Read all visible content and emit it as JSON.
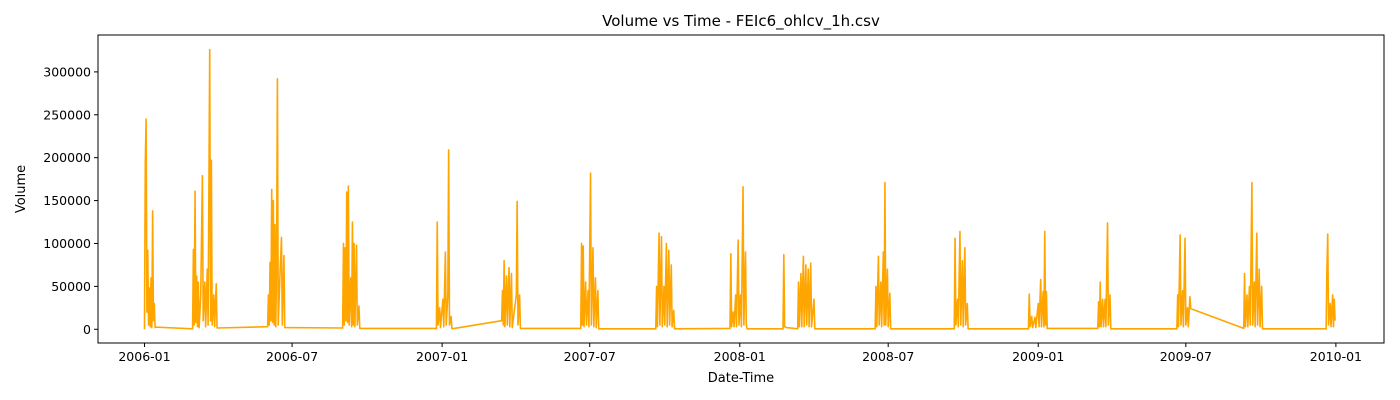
{
  "chart_data": {
    "type": "line",
    "title": "Volume vs Time - FEIc6_ohlcv_1h.csv",
    "xlabel": "Date-Time",
    "ylabel": "Volume",
    "line_color": "#FFA500",
    "grid": false,
    "legend": "none",
    "x_ticks": [
      "2006-01",
      "2006-07",
      "2007-01",
      "2007-07",
      "2008-01",
      "2008-07",
      "2009-01",
      "2009-07",
      "2010-01"
    ],
    "y_ticks": [
      "0",
      "50000",
      "100000",
      "150000",
      "200000",
      "250000",
      "300000"
    ],
    "xlim": [
      "2005-11-05",
      "2010-03-01"
    ],
    "ylim": [
      -16000,
      343000
    ],
    "series": [
      {
        "values": [
          [
            "2006-01-01",
            0
          ],
          [
            "2006-01-02",
            195000
          ],
          [
            "2006-01-03",
            245000
          ],
          [
            "2006-01-04",
            20000
          ],
          [
            "2006-01-05",
            92000
          ],
          [
            "2006-01-06",
            5000
          ],
          [
            "2006-01-07",
            48000
          ],
          [
            "2006-01-08",
            3000
          ],
          [
            "2006-01-09",
            60000
          ],
          [
            "2006-01-10",
            2000
          ],
          [
            "2006-01-11",
            138000
          ],
          [
            "2006-01-12",
            10000
          ],
          [
            "2006-01-13",
            30000
          ],
          [
            "2006-01-14",
            2000
          ],
          [
            "2006-01-15",
            2500
          ],
          [
            "2006-03-01",
            500
          ],
          [
            "2006-03-02",
            93000
          ],
          [
            "2006-03-03",
            5000
          ],
          [
            "2006-03-04",
            161000
          ],
          [
            "2006-03-05",
            8000
          ],
          [
            "2006-03-06",
            62000
          ],
          [
            "2006-03-07",
            3000
          ],
          [
            "2006-03-08",
            55000
          ],
          [
            "2006-03-09",
            2000
          ],
          [
            "2006-03-11",
            40000
          ],
          [
            "2006-03-13",
            179000
          ],
          [
            "2006-03-14",
            10000
          ],
          [
            "2006-03-16",
            55000
          ],
          [
            "2006-03-17",
            3000
          ],
          [
            "2006-03-19",
            70000
          ],
          [
            "2006-03-20",
            5000
          ],
          [
            "2006-03-22",
            326000
          ],
          [
            "2006-03-23",
            10000
          ],
          [
            "2006-03-24",
            197000
          ],
          [
            "2006-03-25",
            5000
          ],
          [
            "2006-03-27",
            40000
          ],
          [
            "2006-03-28",
            3000
          ],
          [
            "2006-03-30",
            53000
          ],
          [
            "2006-03-31",
            1500
          ],
          [
            "2006-06-01",
            3000
          ],
          [
            "2006-06-02",
            40000
          ],
          [
            "2006-06-03",
            5000
          ],
          [
            "2006-06-04",
            78000
          ],
          [
            "2006-06-05",
            10000
          ],
          [
            "2006-06-06",
            163000
          ],
          [
            "2006-06-07",
            8000
          ],
          [
            "2006-06-08",
            150000
          ],
          [
            "2006-06-09",
            5000
          ],
          [
            "2006-06-10",
            122000
          ],
          [
            "2006-06-11",
            3000
          ],
          [
            "2006-06-12",
            75000
          ],
          [
            "2006-06-13",
            292000
          ],
          [
            "2006-06-14",
            5000
          ],
          [
            "2006-06-16",
            60000
          ],
          [
            "2006-06-18",
            107000
          ],
          [
            "2006-06-19",
            5000
          ],
          [
            "2006-06-21",
            86000
          ],
          [
            "2006-06-22",
            2000
          ],
          [
            "2006-09-01",
            1500
          ],
          [
            "2006-09-02",
            100000
          ],
          [
            "2006-09-03",
            5000
          ],
          [
            "2006-09-04",
            95000
          ],
          [
            "2006-09-05",
            10000
          ],
          [
            "2006-09-06",
            160000
          ],
          [
            "2006-09-07",
            8000
          ],
          [
            "2006-09-08",
            167000
          ],
          [
            "2006-09-09",
            5000
          ],
          [
            "2006-09-11",
            60000
          ],
          [
            "2006-09-12",
            3000
          ],
          [
            "2006-09-13",
            125000
          ],
          [
            "2006-09-14",
            5000
          ],
          [
            "2006-09-15",
            100000
          ],
          [
            "2006-09-16",
            3000
          ],
          [
            "2006-09-18",
            98000
          ],
          [
            "2006-09-19",
            5000
          ],
          [
            "2006-09-21",
            27000
          ],
          [
            "2006-09-22",
            1000
          ],
          [
            "2006-12-25",
            1000
          ],
          [
            "2006-12-26",
            125000
          ],
          [
            "2006-12-27",
            5000
          ],
          [
            "2006-12-29",
            25000
          ],
          [
            "2006-12-30",
            2000
          ],
          [
            "2007-01-02",
            35000
          ],
          [
            "2007-01-03",
            3000
          ],
          [
            "2007-01-05",
            90000
          ],
          [
            "2007-01-06",
            5000
          ],
          [
            "2007-01-08",
            40000
          ],
          [
            "2007-01-09",
            209000
          ],
          [
            "2007-01-10",
            5000
          ],
          [
            "2007-01-12",
            15000
          ],
          [
            "2007-01-13",
            500
          ],
          [
            "2007-03-15",
            10000
          ],
          [
            "2007-03-16",
            45000
          ],
          [
            "2007-03-17",
            5000
          ],
          [
            "2007-03-18",
            80000
          ],
          [
            "2007-03-19",
            3000
          ],
          [
            "2007-03-21",
            62000
          ],
          [
            "2007-03-22",
            5000
          ],
          [
            "2007-03-24",
            72000
          ],
          [
            "2007-03-25",
            3000
          ],
          [
            "2007-03-27",
            65000
          ],
          [
            "2007-03-28",
            2000
          ],
          [
            "2007-04-02",
            40000
          ],
          [
            "2007-04-03",
            149000
          ],
          [
            "2007-04-04",
            5000
          ],
          [
            "2007-04-06",
            40000
          ],
          [
            "2007-04-07",
            1000
          ],
          [
            "2007-06-20",
            1000
          ],
          [
            "2007-06-21",
            100000
          ],
          [
            "2007-06-22",
            5000
          ],
          [
            "2007-06-23",
            97000
          ],
          [
            "2007-06-24",
            3000
          ],
          [
            "2007-06-26",
            55000
          ],
          [
            "2007-06-27",
            5000
          ],
          [
            "2007-06-29",
            45000
          ],
          [
            "2007-06-30",
            3000
          ],
          [
            "2007-07-02",
            182000
          ],
          [
            "2007-07-03",
            5000
          ],
          [
            "2007-07-05",
            95000
          ],
          [
            "2007-07-06",
            3000
          ],
          [
            "2007-07-08",
            60000
          ],
          [
            "2007-07-09",
            2000
          ],
          [
            "2007-07-11",
            45000
          ],
          [
            "2007-07-12",
            500
          ],
          [
            "2007-09-20",
            500
          ],
          [
            "2007-09-21",
            50000
          ],
          [
            "2007-09-22",
            3000
          ],
          [
            "2007-09-24",
            112000
          ],
          [
            "2007-09-25",
            5000
          ],
          [
            "2007-09-27",
            108000
          ],
          [
            "2007-09-28",
            3000
          ],
          [
            "2007-09-30",
            50000
          ],
          [
            "2007-10-01",
            5000
          ],
          [
            "2007-10-03",
            100000
          ],
          [
            "2007-10-04",
            3000
          ],
          [
            "2007-10-06",
            92000
          ],
          [
            "2007-10-07",
            5000
          ],
          [
            "2007-10-09",
            75000
          ],
          [
            "2007-10-10",
            3000
          ],
          [
            "2007-10-12",
            22000
          ],
          [
            "2007-10-13",
            500
          ],
          [
            "2007-12-20",
            1000
          ],
          [
            "2007-12-21",
            88000
          ],
          [
            "2007-12-22",
            3000
          ],
          [
            "2007-12-24",
            20000
          ],
          [
            "2007-12-25",
            3000
          ],
          [
            "2007-12-27",
            40000
          ],
          [
            "2007-12-28",
            3000
          ],
          [
            "2007-12-30",
            104000
          ],
          [
            "2007-12-31",
            5000
          ],
          [
            "2008-01-02",
            40000
          ],
          [
            "2008-01-03",
            3000
          ],
          [
            "2008-01-05",
            166000
          ],
          [
            "2008-01-06",
            5000
          ],
          [
            "2008-01-08",
            90000
          ],
          [
            "2008-01-09",
            5000
          ],
          [
            "2008-01-10",
            500
          ],
          [
            "2008-02-23",
            500
          ],
          [
            "2008-02-24",
            87000
          ],
          [
            "2008-02-25",
            3000
          ],
          [
            "2008-02-27",
            2000
          ],
          [
            "2008-03-12",
            500
          ],
          [
            "2008-03-13",
            55000
          ],
          [
            "2008-03-14",
            3000
          ],
          [
            "2008-03-16",
            65000
          ],
          [
            "2008-03-17",
            3000
          ],
          [
            "2008-03-19",
            85000
          ],
          [
            "2008-03-20",
            3000
          ],
          [
            "2008-03-22",
            75000
          ],
          [
            "2008-03-23",
            5000
          ],
          [
            "2008-03-25",
            70000
          ],
          [
            "2008-03-26",
            3000
          ],
          [
            "2008-03-28",
            77000
          ],
          [
            "2008-03-29",
            3000
          ],
          [
            "2008-04-01",
            35000
          ],
          [
            "2008-04-02",
            500
          ],
          [
            "2008-06-15",
            500
          ],
          [
            "2008-06-16",
            50000
          ],
          [
            "2008-06-17",
            3000
          ],
          [
            "2008-06-19",
            85000
          ],
          [
            "2008-06-20",
            5000
          ],
          [
            "2008-06-22",
            55000
          ],
          [
            "2008-06-23",
            3000
          ],
          [
            "2008-06-25",
            90000
          ],
          [
            "2008-06-26",
            5000
          ],
          [
            "2008-06-27",
            171000
          ],
          [
            "2008-06-28",
            5000
          ],
          [
            "2008-06-30",
            70000
          ],
          [
            "2008-07-01",
            3000
          ],
          [
            "2008-07-03",
            42000
          ],
          [
            "2008-07-04",
            500
          ],
          [
            "2008-09-20",
            500
          ],
          [
            "2008-09-21",
            106000
          ],
          [
            "2008-09-22",
            5000
          ],
          [
            "2008-09-24",
            35000
          ],
          [
            "2008-09-25",
            3000
          ],
          [
            "2008-09-27",
            114000
          ],
          [
            "2008-09-28",
            5000
          ],
          [
            "2008-09-30",
            80000
          ],
          [
            "2008-10-01",
            3000
          ],
          [
            "2008-10-03",
            95000
          ],
          [
            "2008-10-04",
            5000
          ],
          [
            "2008-10-06",
            30000
          ],
          [
            "2008-10-07",
            500
          ],
          [
            "2008-12-20",
            500
          ],
          [
            "2008-12-21",
            41000
          ],
          [
            "2008-12-22",
            3000
          ],
          [
            "2008-12-24",
            15000
          ],
          [
            "2008-12-25",
            2000
          ],
          [
            "2008-12-28",
            14000
          ],
          [
            "2008-12-29",
            2000
          ],
          [
            "2009-01-01",
            30000
          ],
          [
            "2009-01-02",
            3000
          ],
          [
            "2009-01-04",
            58000
          ],
          [
            "2009-01-05",
            3000
          ],
          [
            "2009-01-07",
            44000
          ],
          [
            "2009-01-08",
            3000
          ],
          [
            "2009-01-09",
            114000
          ],
          [
            "2009-01-10",
            5000
          ],
          [
            "2009-01-11",
            44000
          ],
          [
            "2009-01-12",
            1000
          ],
          [
            "2009-03-15",
            1000
          ],
          [
            "2009-03-16",
            32000
          ],
          [
            "2009-03-17",
            3000
          ],
          [
            "2009-03-18",
            55000
          ],
          [
            "2009-03-19",
            3000
          ],
          [
            "2009-03-21",
            35000
          ],
          [
            "2009-03-22",
            3000
          ],
          [
            "2009-03-24",
            35000
          ],
          [
            "2009-03-25",
            3000
          ],
          [
            "2009-03-27",
            124000
          ],
          [
            "2009-03-28",
            5000
          ],
          [
            "2009-03-30",
            40000
          ],
          [
            "2009-03-31",
            500
          ],
          [
            "2009-06-20",
            500
          ],
          [
            "2009-06-21",
            40000
          ],
          [
            "2009-06-22",
            3000
          ],
          [
            "2009-06-24",
            110000
          ],
          [
            "2009-06-25",
            5000
          ],
          [
            "2009-06-27",
            45000
          ],
          [
            "2009-06-28",
            3000
          ],
          [
            "2009-06-30",
            106000
          ],
          [
            "2009-07-01",
            5000
          ],
          [
            "2009-07-03",
            25000
          ],
          [
            "2009-07-04",
            3000
          ],
          [
            "2009-07-06",
            38000
          ],
          [
            "2009-07-07",
            24000
          ],
          [
            "2009-09-10",
            1000
          ],
          [
            "2009-09-11",
            65000
          ],
          [
            "2009-09-12",
            3000
          ],
          [
            "2009-09-14",
            40000
          ],
          [
            "2009-09-15",
            3000
          ],
          [
            "2009-09-17",
            50000
          ],
          [
            "2009-09-18",
            5000
          ],
          [
            "2009-09-20",
            171000
          ],
          [
            "2009-09-21",
            5000
          ],
          [
            "2009-09-23",
            55000
          ],
          [
            "2009-09-24",
            3000
          ],
          [
            "2009-09-26",
            112000
          ],
          [
            "2009-09-27",
            5000
          ],
          [
            "2009-09-29",
            70000
          ],
          [
            "2009-09-30",
            3000
          ],
          [
            "2009-10-02",
            50000
          ],
          [
            "2009-10-03",
            500
          ],
          [
            "2009-12-20",
            500
          ],
          [
            "2009-12-21",
            70000
          ],
          [
            "2009-12-22",
            111000
          ],
          [
            "2009-12-23",
            5000
          ],
          [
            "2009-12-25",
            30000
          ],
          [
            "2009-12-26",
            3000
          ],
          [
            "2009-12-28",
            40000
          ],
          [
            "2009-12-29",
            3000
          ],
          [
            "2009-12-30",
            35000
          ],
          [
            "2009-12-31",
            10000
          ]
        ]
      }
    ]
  }
}
